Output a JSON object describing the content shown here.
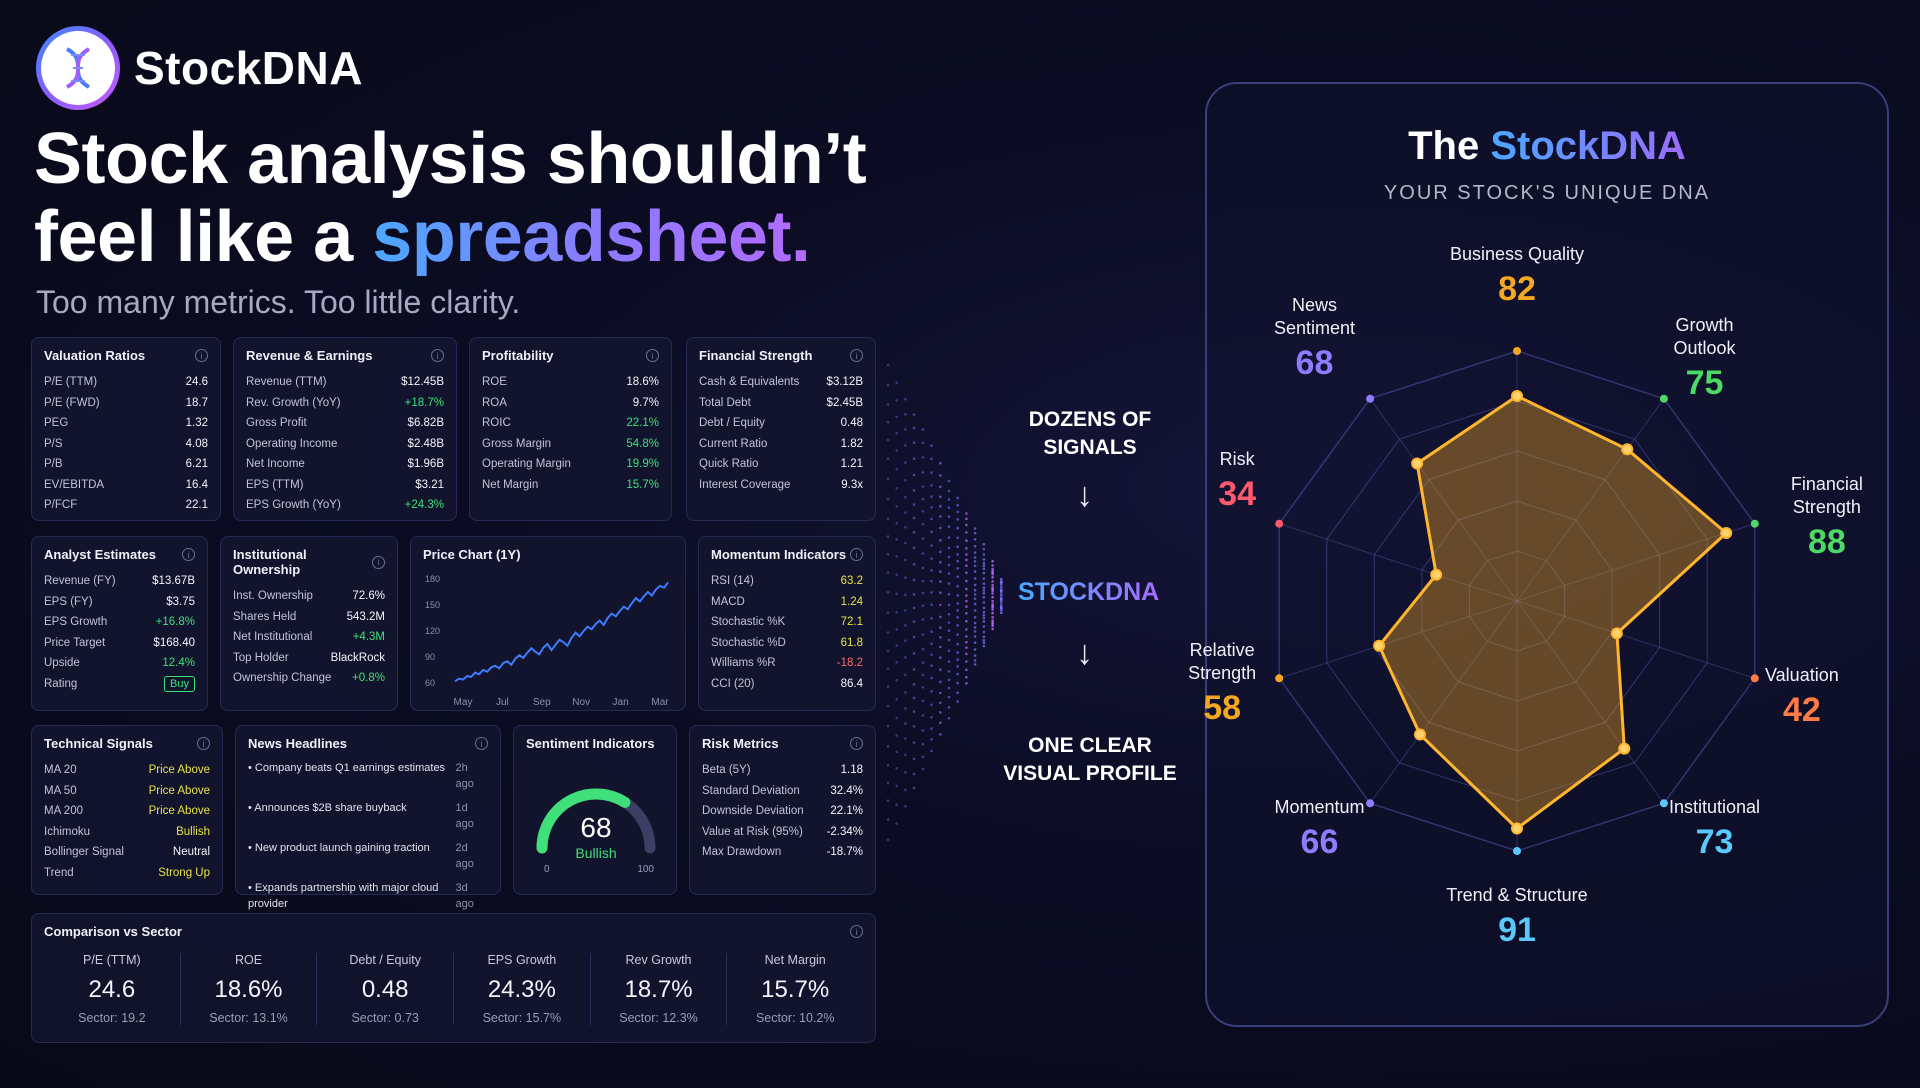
{
  "brand": {
    "name": "StockDNA"
  },
  "hero": {
    "line1": "Stock analysis shouldn’t",
    "line2_prefix": "feel like a ",
    "line2_accent": "spreadsheet.",
    "subtitle": "Too many metrics. Too little clarity."
  },
  "cards": {
    "valuation": {
      "title": "Valuation Ratios",
      "rows": [
        {
          "label": "P/E (TTM)",
          "value": "24.6"
        },
        {
          "label": "P/E (FWD)",
          "value": "18.7"
        },
        {
          "label": "PEG",
          "value": "1.32"
        },
        {
          "label": "P/S",
          "value": "4.08"
        },
        {
          "label": "P/B",
          "value": "6.21"
        },
        {
          "label": "EV/EBITDA",
          "value": "16.4"
        },
        {
          "label": "P/FCF",
          "value": "22.1"
        }
      ]
    },
    "revenue": {
      "title": "Revenue & Earnings",
      "rows": [
        {
          "label": "Revenue (TTM)",
          "value": "$12.45B"
        },
        {
          "label": "Rev. Growth (YoY)",
          "value": "+18.7%"
        },
        {
          "label": "Gross Profit",
          "value": "$6.82B"
        },
        {
          "label": "Operating Income",
          "value": "$2.48B"
        },
        {
          "label": "Net Income",
          "value": "$1.96B"
        },
        {
          "label": "EPS (TTM)",
          "value": "$3.21"
        },
        {
          "label": "EPS Growth (YoY)",
          "value": "+24.3%"
        }
      ]
    },
    "profitability": {
      "title": "Profitability",
      "rows": [
        {
          "label": "ROE",
          "value": "18.6%"
        },
        {
          "label": "ROA",
          "value": "9.7%"
        },
        {
          "label": "ROIC",
          "value": "22.1%"
        },
        {
          "label": "Gross Margin",
          "value": "54.8%"
        },
        {
          "label": "Operating Margin",
          "value": "19.9%"
        },
        {
          "label": "Net Margin",
          "value": "15.7%"
        }
      ]
    },
    "financial": {
      "title": "Financial Strength",
      "rows": [
        {
          "label": "Cash & Equivalents",
          "value": "$3.12B"
        },
        {
          "label": "Total Debt",
          "value": "$2.45B"
        },
        {
          "label": "Debt / Equity",
          "value": "0.48"
        },
        {
          "label": "Current Ratio",
          "value": "1.82"
        },
        {
          "label": "Quick Ratio",
          "value": "1.21"
        },
        {
          "label": "Interest Coverage",
          "value": "9.3x"
        }
      ]
    },
    "analyst": {
      "title": "Analyst Estimates",
      "rows": [
        {
          "label": "Revenue (FY)",
          "value": "$13.67B"
        },
        {
          "label": "EPS (FY)",
          "value": "$3.75"
        },
        {
          "label": "EPS Growth",
          "value": "+16.8%"
        },
        {
          "label": "Price Target",
          "value": "$168.40"
        },
        {
          "label": "Upside",
          "value": "12.4%"
        },
        {
          "label": "Rating",
          "value": "Buy"
        }
      ]
    },
    "institutional": {
      "title": "Institutional Ownership",
      "rows": [
        {
          "label": "Inst. Ownership",
          "value": "72.6%"
        },
        {
          "label": "Shares Held",
          "value": "543.2M"
        },
        {
          "label": "Net Institutional",
          "value": "+4.3M"
        },
        {
          "label": "Top Holder",
          "value": "BlackRock"
        },
        {
          "label": "Ownership Change",
          "value": "+0.8%"
        }
      ]
    },
    "momentum": {
      "title": "Momentum Indicators",
      "rows": [
        {
          "label": "RSI (14)",
          "value": "63.2"
        },
        {
          "label": "MACD",
          "value": "1.24"
        },
        {
          "label": "Stochastic %K",
          "value": "72.1"
        },
        {
          "label": "Stochastic %D",
          "value": "61.8"
        },
        {
          "label": "Williams %R",
          "value": "-18.2"
        },
        {
          "label": "CCI (20)",
          "value": "86.4"
        }
      ]
    },
    "technical": {
      "title": "Technical Signals",
      "rows": [
        {
          "label": "MA 20",
          "value": "Price Above"
        },
        {
          "label": "MA 50",
          "value": "Price Above"
        },
        {
          "label": "MA 200",
          "value": "Price Above"
        },
        {
          "label": "Ichimoku",
          "value": "Bullish"
        },
        {
          "label": "Bollinger Signal",
          "value": "Neutral"
        },
        {
          "label": "Trend",
          "value": "Strong Up"
        }
      ]
    },
    "news": {
      "title": "News Headlines",
      "items": [
        {
          "text": "• Company beats Q1 earnings estimates",
          "date": "2h ago"
        },
        {
          "text": "• Announces $2B share buyback",
          "date": "1d ago"
        },
        {
          "text": "• New product launch gaining traction",
          "date": "2d ago"
        },
        {
          "text": "• Expands partnership with major cloud provider",
          "date": "3d ago"
        }
      ]
    },
    "sentiment": {
      "title": "Sentiment Indicators",
      "score": "68",
      "label": "Bullish",
      "min": "0",
      "max": "100",
      "value": 68
    },
    "risk": {
      "title": "Risk Metrics",
      "rows": [
        {
          "label": "Beta (5Y)",
          "value": "1.18"
        },
        {
          "label": "Standard Deviation",
          "value": "32.4%"
        },
        {
          "label": "Downside Deviation",
          "value": "22.1%"
        },
        {
          "label": "Value at Risk (95%)",
          "value": "-2.34%"
        },
        {
          "label": "Max Drawdown",
          "value": "-18.7%"
        }
      ]
    },
    "price_chart": {
      "title": "Price Chart (1Y)"
    },
    "comparison": {
      "title": "Comparison vs Sector",
      "cols": [
        {
          "head": "P/E (TTM)",
          "value": "24.6",
          "sector": "Sector: 19.2"
        },
        {
          "head": "ROE",
          "value": "18.6%",
          "sector": "Sector: 13.1%"
        },
        {
          "head": "Debt / Equity",
          "value": "0.48",
          "sector": "Sector: 0.73"
        },
        {
          "head": "EPS Growth",
          "value": "24.3%",
          "sector": "Sector: 15.7%"
        },
        {
          "head": "Rev Growth",
          "value": "18.7%",
          "sector": "Sector: 12.3%"
        },
        {
          "head": "Net Margin",
          "value": "15.7%",
          "sector": "Sector: 10.2%"
        }
      ]
    }
  },
  "chart_data": {
    "type": "line",
    "title": "Price Chart (1Y)",
    "x_ticks": [
      "May",
      "Jul",
      "Sep",
      "Nov",
      "Jan",
      "Mar"
    ],
    "y_ticks": [
      "180",
      "150",
      "120",
      "90",
      "60"
    ],
    "ylim": [
      60,
      180
    ],
    "values": [
      62,
      65,
      64,
      68,
      67,
      72,
      70,
      75,
      73,
      78,
      80,
      77,
      83,
      85,
      81,
      88,
      92,
      89,
      95,
      100,
      96,
      93,
      101,
      105,
      98,
      104,
      110,
      107,
      103,
      112,
      118,
      114,
      120,
      125,
      122,
      128,
      132,
      127,
      135,
      140,
      137,
      143,
      148,
      145,
      152,
      158,
      154,
      160,
      165,
      161,
      168,
      172,
      170,
      176
    ]
  },
  "flow": {
    "top": "DOZENS OF SIGNALS",
    "mid": "STOCKDNA",
    "bottom": "ONE CLEAR VISUAL PROFILE"
  },
  "radar": {
    "title_prefix": "The ",
    "title_accent": "StockDNA",
    "subtitle": "YOUR STOCK'S UNIQUE DNA",
    "axes": [
      {
        "name": "Business Quality",
        "value": 82,
        "color": "#f5a623"
      },
      {
        "name": "Growth Outlook",
        "value": 75,
        "color": "#4cd964"
      },
      {
        "name": "Financial Strength",
        "value": 88,
        "color": "#4cd964"
      },
      {
        "name": "Valuation",
        "value": 42,
        "color": "#ff7a45"
      },
      {
        "name": "Institutional",
        "value": 73,
        "color": "#5ac8fa"
      },
      {
        "name": "Trend & Structure",
        "value": 91,
        "color": "#5ac8fa"
      },
      {
        "name": "Momentum",
        "value": 66,
        "color": "#8e7bff"
      },
      {
        "name": "Relative Strength",
        "value": 58,
        "color": "#f5a623"
      },
      {
        "name": "Risk",
        "value": 34,
        "color": "#ff5a6e"
      },
      {
        "name": "News Sentiment",
        "value": 68,
        "color": "#8e7bff"
      }
    ]
  }
}
